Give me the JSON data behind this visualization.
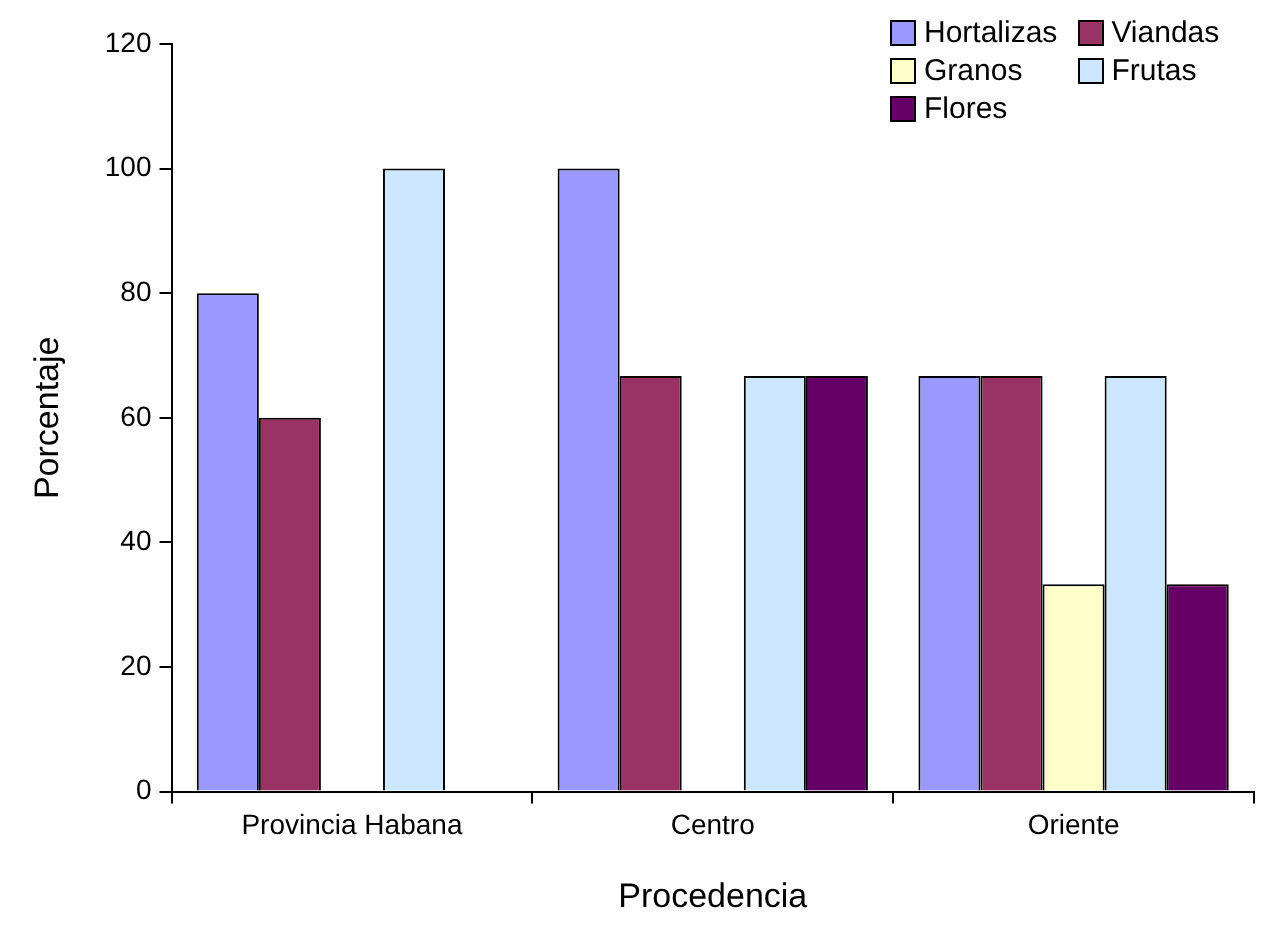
{
  "chart_data": {
    "type": "bar",
    "xlabel": "Procedencia",
    "ylabel": "Porcentaje",
    "categories": [
      "Provincia Habana",
      "Centro",
      "Oriente"
    ],
    "series": [
      {
        "name": "Hortalizas",
        "color": "#9999ff",
        "values": [
          80,
          100,
          66.7
        ]
      },
      {
        "name": "Viandas",
        "color": "#993366",
        "values": [
          60,
          66.7,
          66.7
        ]
      },
      {
        "name": "Granos",
        "color": "#ffffcc",
        "values": [
          null,
          null,
          33.3
        ]
      },
      {
        "name": "Frutas",
        "color": "#cce6ff",
        "values": [
          100,
          66.7,
          66.7
        ]
      },
      {
        "name": "Flores",
        "color": "#660066",
        "values": [
          null,
          66.7,
          33.3
        ]
      }
    ],
    "ylim": [
      0,
      120
    ],
    "yticks": [
      0,
      20,
      40,
      60,
      80,
      100,
      120
    ],
    "grid": false,
    "legend": "top right"
  }
}
